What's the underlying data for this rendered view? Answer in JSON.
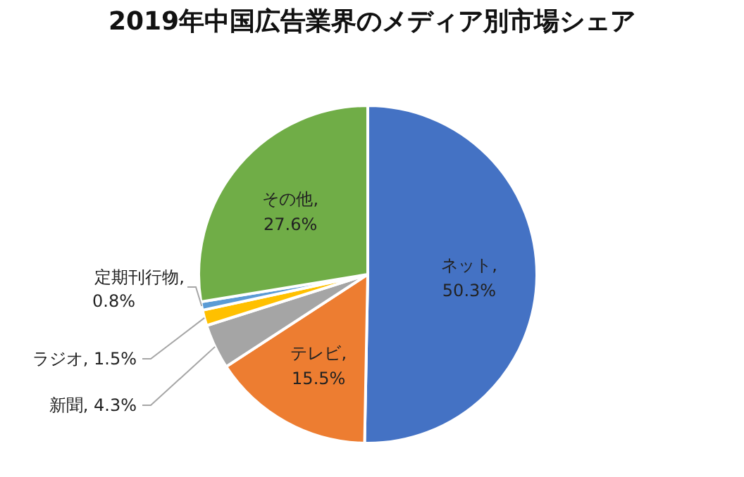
{
  "chart_data": {
    "type": "pie",
    "title": "2019年中国広告業界のメディア別市場シェア",
    "categories": [
      "ネット",
      "テレビ",
      "新聞",
      "ラジオ",
      "定期刊行物",
      "その他"
    ],
    "values": [
      50.3,
      15.5,
      4.3,
      1.5,
      0.8,
      27.6
    ],
    "colors": [
      "#4472c4",
      "#ed7d31",
      "#a5a5a5",
      "#ffc000",
      "#5b9bd5",
      "#70ad47"
    ],
    "value_labels": [
      ", 50.3%",
      ", 15.5%",
      ", 4.3%",
      ", 1.5%",
      ", 0.8%",
      ", 27.6%"
    ]
  }
}
